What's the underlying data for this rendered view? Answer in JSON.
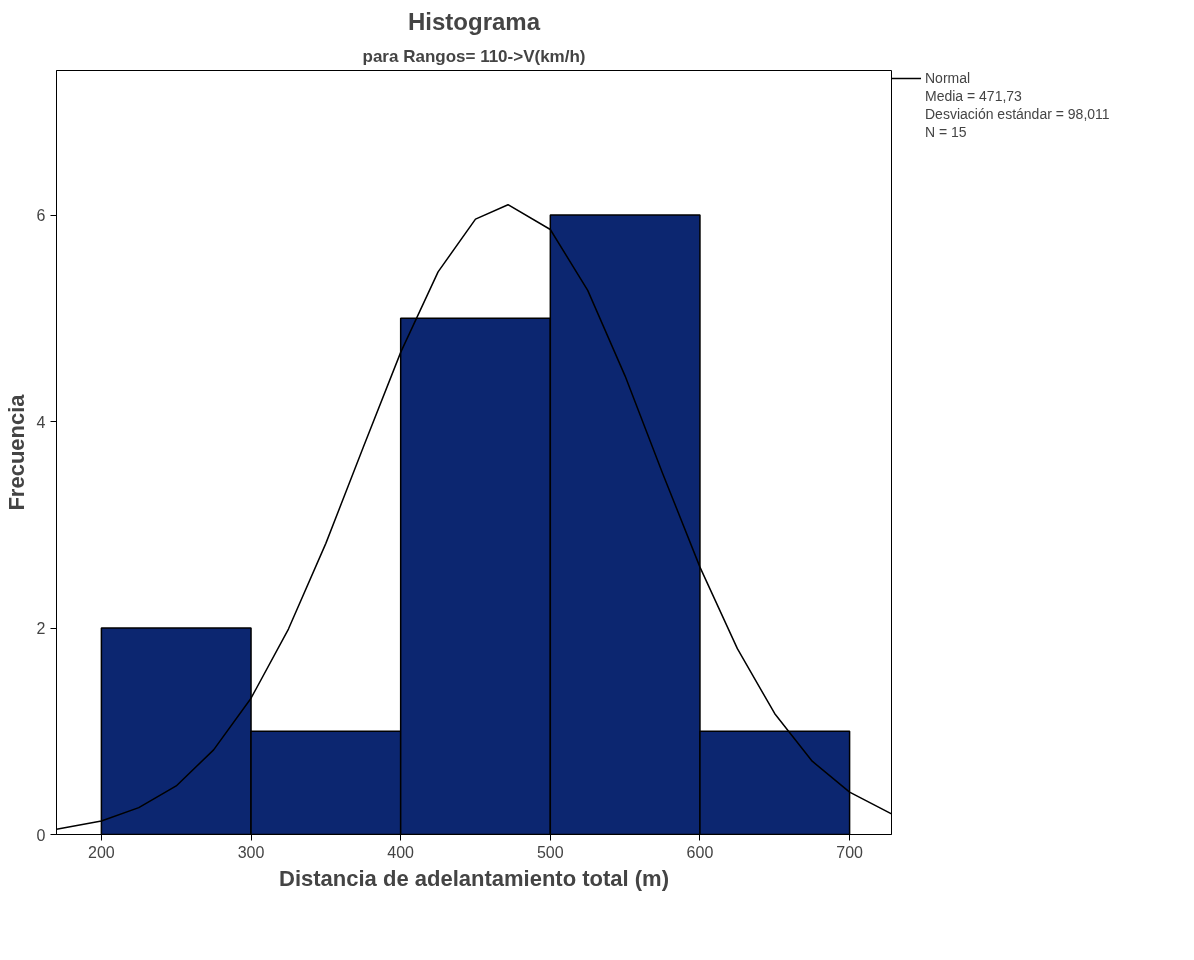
{
  "chart_data": {
    "type": "histogram",
    "title": "Histograma",
    "subtitle": "para Rangos= 110->V(km/h)",
    "xlabel": "Distancia de adelantamiento total (m)",
    "ylabel": "Frecuencia",
    "bins": [
      200,
      300,
      400,
      500,
      600,
      700
    ],
    "values": [
      2,
      1,
      5,
      6,
      1
    ],
    "color": "#0c2670",
    "series": [
      {
        "name": "Normal",
        "type": "line",
        "color": "#000000",
        "x": [
          170,
          200,
          225,
          250,
          275,
          300,
          325,
          350,
          375,
          400,
          425,
          450,
          471.73,
          500,
          525,
          550,
          575,
          600,
          625,
          650,
          675,
          700,
          728
        ],
        "values": [
          0.05,
          0.13,
          0.26,
          0.47,
          0.82,
          1.32,
          1.99,
          2.82,
          3.75,
          4.67,
          5.45,
          5.96,
          6.1,
          5.86,
          5.27,
          4.44,
          3.5,
          2.59,
          1.8,
          1.17,
          0.71,
          0.41,
          0.2
        ]
      }
    ],
    "xlim": [
      170,
      728
    ],
    "ylim": [
      0,
      7.4
    ],
    "xticks": [
      200,
      300,
      400,
      500,
      600,
      700
    ],
    "yticks": [
      0,
      2,
      4,
      6
    ],
    "annotations": [
      "Media = 471,73",
      "Desviación estándar = 98,011",
      "N = 15"
    ],
    "legend": "top right",
    "grid": false,
    "line_style": "solid",
    "marker": "none"
  }
}
